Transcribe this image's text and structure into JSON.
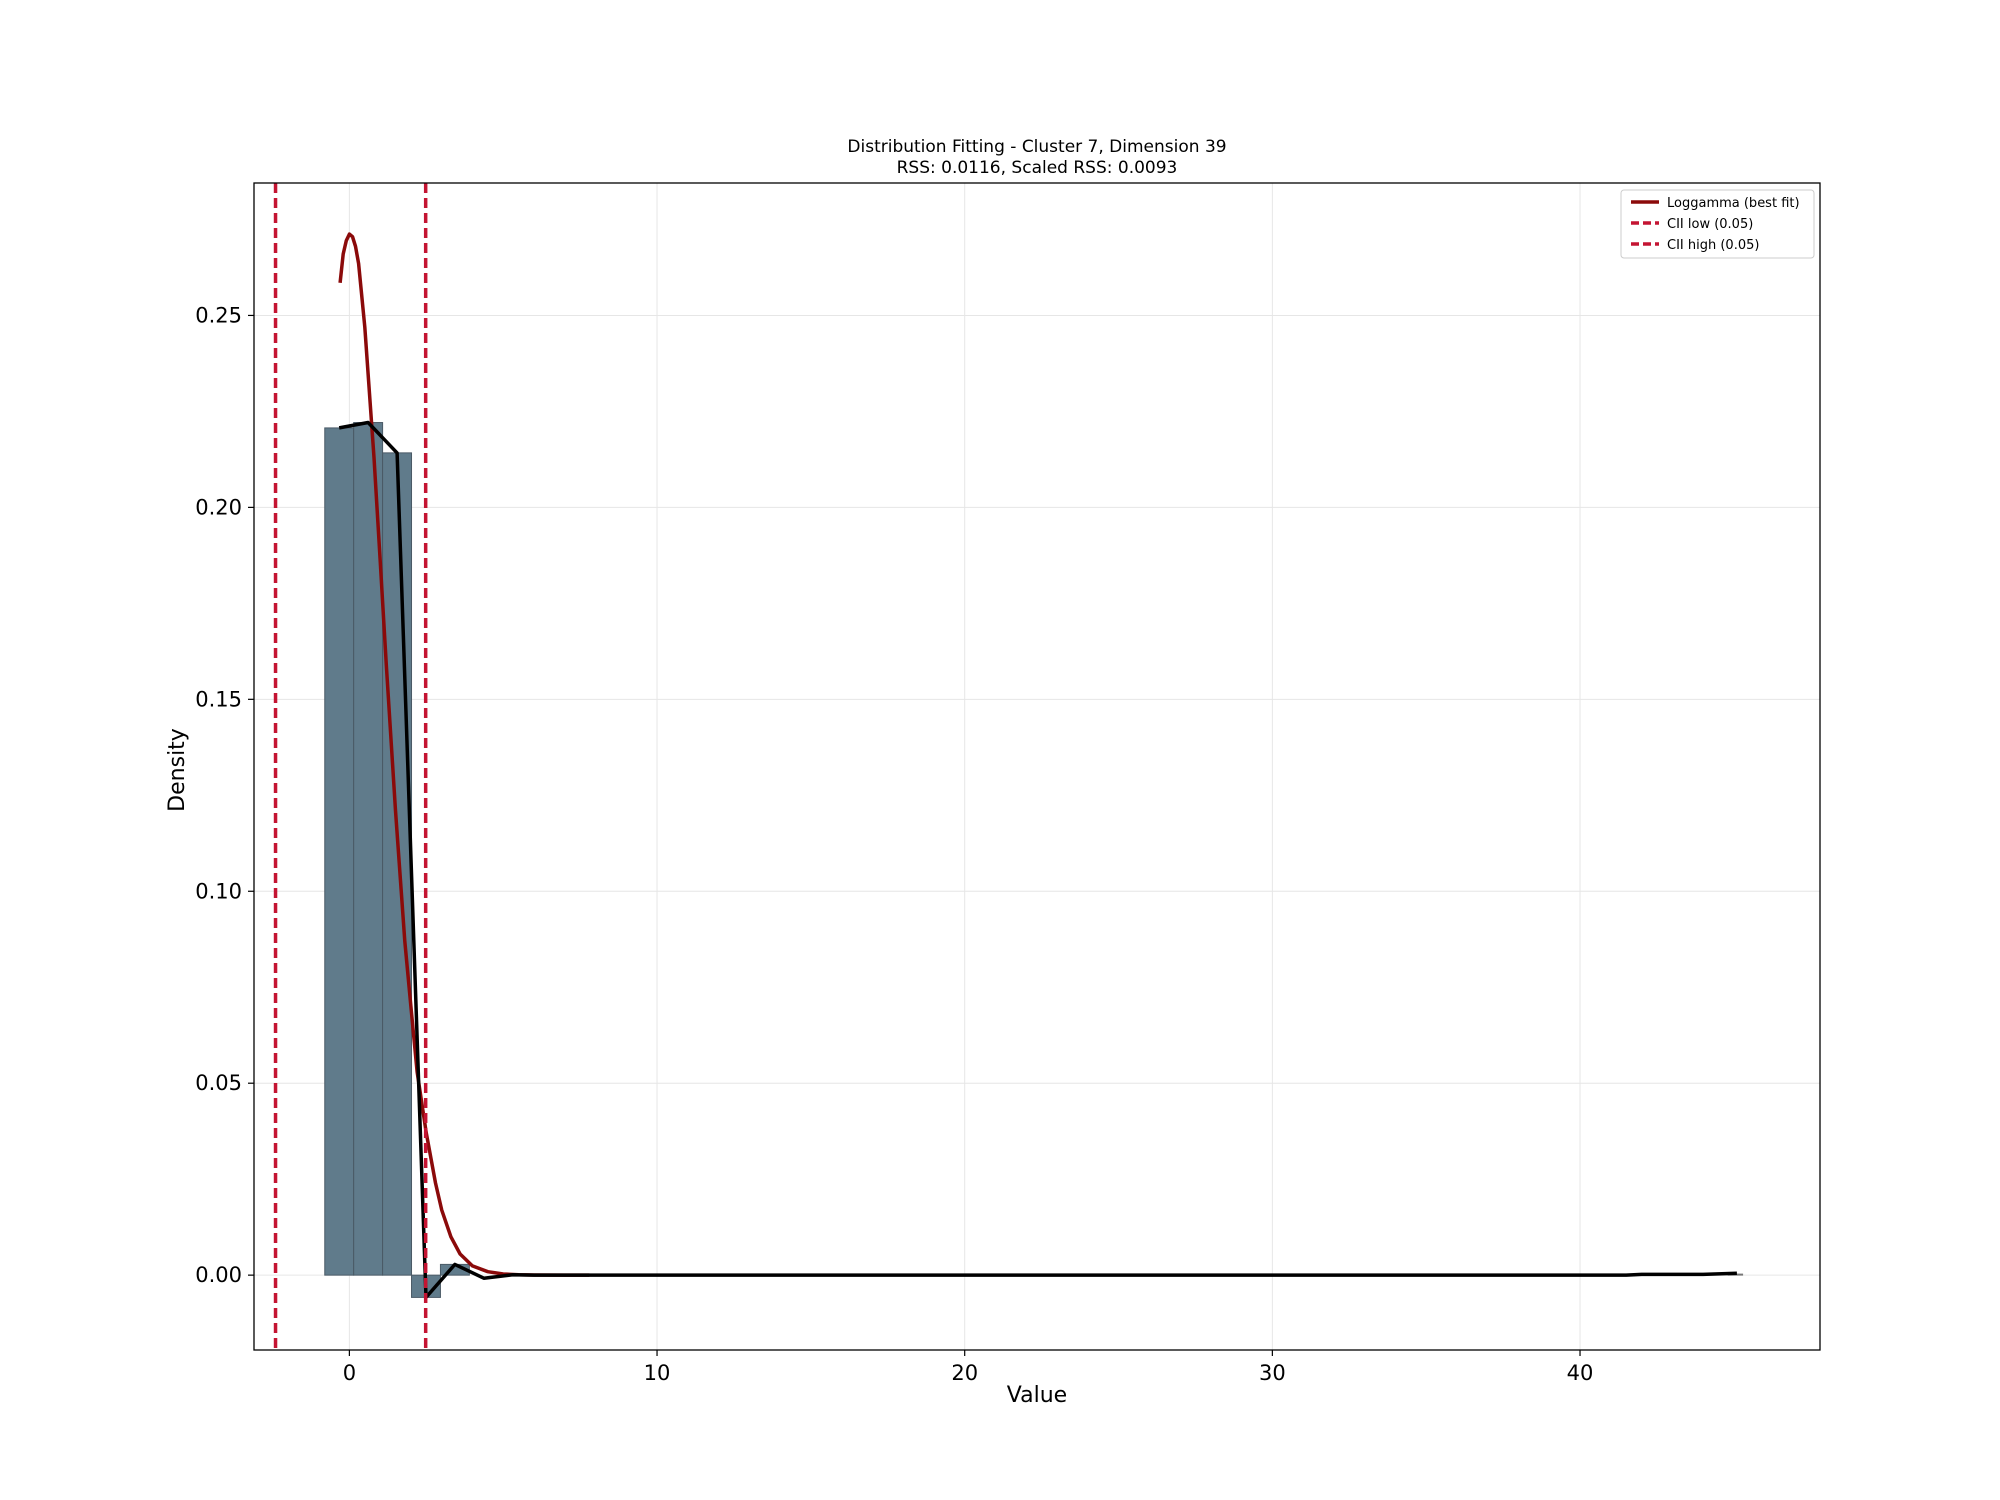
{
  "chart_data": {
    "type": "bar",
    "title": "Distribution Fitting - Cluster 7, Dimension 39",
    "subtitle": "RSS: 0.0116, Scaled RSS: 0.0093",
    "xlabel": "Value",
    "ylabel": "Density",
    "xlim": [
      -3.1,
      47.8
    ],
    "ylim": [
      -0.0195,
      0.2845
    ],
    "xticks": [
      0,
      10,
      20,
      30,
      40
    ],
    "xtick_labels": [
      "0",
      "10",
      "20",
      "30",
      "40"
    ],
    "yticks": [
      0.0,
      0.05,
      0.1,
      0.15,
      0.2,
      0.25
    ],
    "ytick_labels": [
      "0.00",
      "0.05",
      "0.10",
      "0.15",
      "0.20",
      "0.25"
    ],
    "grid": true,
    "legend_position": "upper right",
    "histogram": {
      "bin_edges": [
        -0.8,
        0.14,
        1.08,
        2.02,
        2.96,
        3.9
      ],
      "values": [
        0.2207,
        0.2221,
        0.2142,
        -0.0058,
        0.0028
      ],
      "tail_bin": {
        "x0": 44.8,
        "x1": 45.3,
        "value": 0.0004
      },
      "color": "#607b8b"
    },
    "series": [
      {
        "name": "Loggamma (best fit)",
        "type": "line",
        "color": "#8b0a0a",
        "x": [
          -0.3,
          -0.2,
          -0.1,
          0.0,
          0.1,
          0.2,
          0.3,
          0.5,
          0.8,
          1.0,
          1.2,
          1.5,
          1.8,
          2.0,
          2.2,
          2.5,
          2.8,
          3.0,
          3.3,
          3.6,
          4.0,
          4.5,
          5.0,
          5.5,
          6.0,
          7.0,
          7.8
        ],
        "y": [
          0.2585,
          0.266,
          0.2695,
          0.2712,
          0.2705,
          0.268,
          0.2635,
          0.247,
          0.213,
          0.1865,
          0.159,
          0.121,
          0.087,
          0.07,
          0.053,
          0.037,
          0.024,
          0.017,
          0.01,
          0.0055,
          0.0024,
          0.0009,
          0.0003,
          0.0001,
          3e-05,
          0.0,
          0.0
        ]
      },
      {
        "name": "",
        "type": "line",
        "color": "#000000",
        "x": [
          -0.33,
          0.61,
          1.55,
          2.49,
          3.43,
          4.37,
          5.31,
          6.0,
          10.0,
          20.0,
          30.0,
          41.5,
          42.0,
          44.0,
          45.1
        ],
        "y": [
          0.2207,
          0.2221,
          0.2142,
          -0.0058,
          0.0028,
          -0.0008,
          0.0001,
          0.0,
          0.0,
          0.0,
          0.0,
          0.0,
          0.0002,
          0.0002,
          0.0005
        ]
      }
    ],
    "vlines": [
      {
        "name": "CII low (0.05)",
        "x": -2.4,
        "color": "#c41432",
        "style": "dashed"
      },
      {
        "name": "CII high (0.05)",
        "x": 2.48,
        "color": "#c41432",
        "style": "dashed"
      }
    ]
  }
}
